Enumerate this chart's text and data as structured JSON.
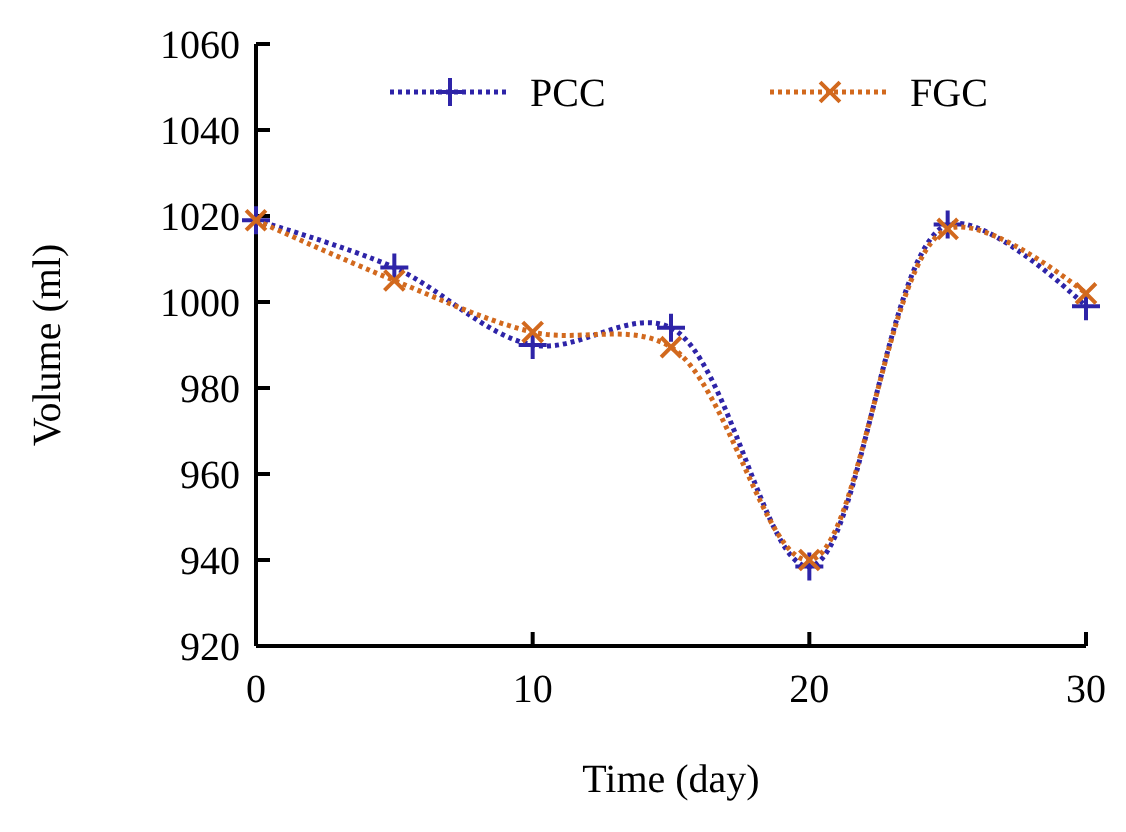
{
  "chart_data": {
    "type": "line",
    "xlabel": "Time (day)",
    "ylabel": "Volume  (ml)",
    "x": [
      0,
      5,
      10,
      15,
      20,
      25,
      30
    ],
    "series": [
      {
        "name": "PCC",
        "color": "#2e24a8",
        "values": [
          1019,
          1008,
          990,
          994,
          938.5,
          1018,
          999
        ]
      },
      {
        "name": "FGC",
        "color": "#d2691e",
        "values": [
          1019,
          1005,
          993,
          989.5,
          940,
          1017,
          1002
        ]
      }
    ],
    "xlim": [
      0,
      30
    ],
    "xticks": [
      0,
      10,
      20,
      30
    ],
    "ylim": [
      920,
      1060
    ],
    "yticks": [
      920,
      940,
      960,
      980,
      1000,
      1020,
      1040,
      1060
    ],
    "grid": false,
    "legend": "top",
    "marker": "cross",
    "line_style": "dotted"
  }
}
